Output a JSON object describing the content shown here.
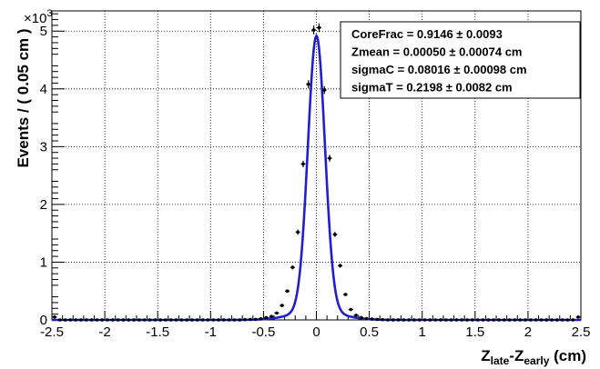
{
  "chart_data": {
    "type": "scatter",
    "title": "",
    "xlabel": {
      "base": "Z",
      "sub1": "late",
      "mid": "-Z",
      "sub2": "early",
      "unit": " (cm)"
    },
    "ylabel": "Events / ( 0.05 cm )",
    "y_exponent_label": {
      "base": "×10",
      "power": "3"
    },
    "xlim": [
      -2.5,
      2.5
    ],
    "ylim": [
      0,
      5.35
    ],
    "x_tick_values": [
      -2.5,
      -2,
      -1.5,
      -1,
      -0.5,
      0,
      0.5,
      1,
      1.5,
      2,
      2.5
    ],
    "x_tick_labels": [
      "-2.5",
      "-2",
      "-1.5",
      "-1",
      "-0.5",
      "0",
      "0.5",
      "1",
      "1.5",
      "2",
      "2.5"
    ],
    "y_tick_values": [
      0,
      1,
      2,
      3,
      4,
      5
    ],
    "y_tick_labels": [
      "0",
      "1",
      "2",
      "3",
      "4",
      "5"
    ],
    "grid": true,
    "series": [
      {
        "kind": "points",
        "color": "#000000",
        "x": [
          -2.475,
          -2.425,
          -2.375,
          -2.325,
          -2.275,
          -2.225,
          -2.175,
          -2.125,
          -2.075,
          -2.025,
          -1.975,
          -1.925,
          -1.875,
          -1.825,
          -1.775,
          -1.725,
          -1.675,
          -1.625,
          -1.575,
          -1.525,
          -1.475,
          -1.425,
          -1.375,
          -1.325,
          -1.275,
          -1.225,
          -1.175,
          -1.125,
          -1.075,
          -1.025,
          -0.975,
          -0.925,
          -0.875,
          -0.825,
          -0.775,
          -0.725,
          -0.675,
          -0.625,
          -0.575,
          -0.525,
          -0.475,
          -0.425,
          -0.375,
          -0.325,
          -0.275,
          -0.225,
          -0.175,
          -0.125,
          -0.075,
          -0.025,
          0.025,
          0.075,
          0.125,
          0.175,
          0.225,
          0.275,
          0.325,
          0.375,
          0.425,
          0.475,
          0.525,
          0.575,
          0.625,
          0.675,
          0.725,
          0.775,
          0.825,
          0.875,
          0.925,
          0.975,
          1.025,
          1.075,
          1.125,
          1.175,
          1.225,
          1.275,
          1.325,
          1.375,
          1.425,
          1.475,
          1.525,
          1.575,
          1.625,
          1.675,
          1.725,
          1.775,
          1.825,
          1.875,
          1.925,
          1.975,
          2.025,
          2.075,
          2.125,
          2.175,
          2.225,
          2.275,
          2.325,
          2.375,
          2.425,
          2.475
        ],
        "y": [
          0.05,
          0,
          0,
          0,
          0,
          0,
          0,
          0,
          0,
          0,
          0,
          0,
          0,
          0,
          0,
          0,
          0,
          0,
          0,
          0,
          0,
          0,
          0,
          0,
          0,
          0,
          0,
          0,
          0,
          0,
          0,
          0,
          0,
          0,
          0,
          0,
          0.005,
          0.01,
          0.01,
          0.02,
          0.04,
          0.06,
          0.12,
          0.25,
          0.5,
          0.91,
          1.52,
          2.7,
          4.08,
          5.02,
          5.06,
          3.98,
          2.8,
          1.48,
          0.94,
          0.44,
          0.18,
          0.08,
          0.04,
          0.025,
          0.015,
          0.01,
          0.005,
          0,
          0,
          0,
          0,
          0,
          0,
          0,
          0,
          0,
          0,
          0,
          0,
          0,
          0,
          0,
          0,
          0,
          0,
          0,
          0,
          0,
          0,
          0,
          0,
          0,
          0,
          0,
          0,
          0,
          0,
          0,
          0,
          0,
          0,
          0,
          0,
          0.05
        ]
      },
      {
        "kind": "fit",
        "color": "#1f1fd0",
        "model": "double-gaussian",
        "bin_width": 0.05,
        "total_events_k": 20.9,
        "core_frac": 0.9146,
        "mean": 0.0005,
        "sigma_core": 0.08016,
        "sigma_tail": 0.2198
      }
    ],
    "stats_box": [
      {
        "label": "CoreFrac = ",
        "value": "0.9146",
        "pm": " ± ",
        "err": "0.0093",
        "unit": ""
      },
      {
        "label": "Zmean = ",
        "value": "0.00050",
        "pm": " ± ",
        "err": "0.00074",
        "unit": " cm"
      },
      {
        "label": "sigmaC = ",
        "value": "0.08016",
        "pm": " ± ",
        "err": "0.00098",
        "unit": " cm"
      },
      {
        "label": "sigmaT = ",
        "value": "0.2198",
        "pm": " ± ",
        "err": "0.0082",
        "unit": " cm"
      }
    ]
  }
}
